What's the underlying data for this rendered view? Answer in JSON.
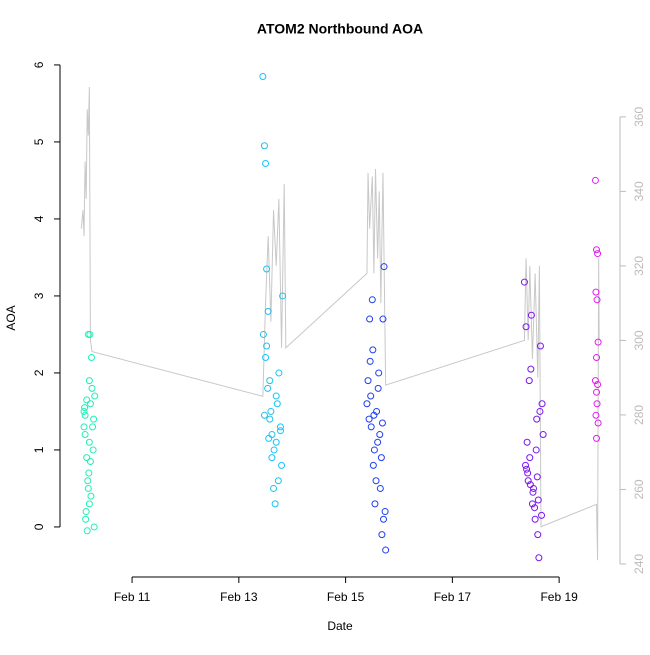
{
  "chart_data": {
    "type": "scatter",
    "title": "ATOM2 Northbound AOA",
    "x_label": "Date",
    "y_label": "AOA",
    "xlim": [
      9.65,
      20.14
    ],
    "xticks": [
      {
        "value": 11,
        "label": "Feb 11"
      },
      {
        "value": 13,
        "label": "Feb 13"
      },
      {
        "value": 15,
        "label": "Feb 15"
      },
      {
        "value": 17,
        "label": "Feb 17"
      },
      {
        "value": 19,
        "label": "Feb 19"
      }
    ],
    "ylim": [
      -0.65,
      6.09
    ],
    "yticks": [
      0,
      1,
      2,
      3,
      4,
      5,
      6
    ],
    "y2lim": [
      236.5,
      375.8
    ],
    "y2ticks": [
      240,
      260,
      280,
      300,
      320,
      340,
      360
    ],
    "series": [
      {
        "color": "#1ef0b4",
        "x": [
          10.1,
          10.12,
          10.15,
          10.18,
          10.2,
          10.22,
          10.25,
          10.28,
          10.1,
          10.13,
          10.16,
          10.19,
          10.21,
          10.24,
          10.27,
          10.3,
          10.11,
          10.14,
          10.17,
          10.2,
          10.23,
          10.26,
          10.29,
          10.12,
          10.18,
          10.22,
          10.15,
          10.2
        ],
        "values": [
          1.5,
          1.2,
          0.9,
          0.5,
          0.3,
          1.6,
          1.8,
          1.4,
          1.3,
          0.1,
          -0.05,
          0.7,
          2.5,
          2.2,
          1.0,
          1.7,
          1.55,
          0.2,
          0.6,
          1.1,
          0.4,
          1.3,
          0.0,
          1.45,
          2.5,
          0.85,
          1.65,
          1.9
        ]
      },
      {
        "color": "#19c3f5",
        "x": [
          13.45,
          13.48,
          13.5,
          13.52,
          13.55,
          13.58,
          13.6,
          13.62,
          13.65,
          13.68,
          13.7,
          13.72,
          13.75,
          13.78,
          13.8,
          13.82,
          13.46,
          13.5,
          13.54,
          13.58,
          13.62,
          13.66,
          13.7,
          13.74,
          13.78,
          13.48,
          13.52,
          13.56
        ],
        "values": [
          5.85,
          4.95,
          4.72,
          3.35,
          2.8,
          1.9,
          1.5,
          1.2,
          0.5,
          0.3,
          1.1,
          1.6,
          2.0,
          1.3,
          0.8,
          3.0,
          2.5,
          2.2,
          1.8,
          1.4,
          0.9,
          1.0,
          1.7,
          0.6,
          1.25,
          1.45,
          2.35,
          1.15
        ]
      },
      {
        "color": "#1f3ff2",
        "x": [
          15.4,
          15.42,
          15.45,
          15.48,
          15.5,
          15.52,
          15.55,
          15.58,
          15.6,
          15.62,
          15.65,
          15.68,
          15.7,
          15.72,
          15.75,
          15.44,
          15.47,
          15.51,
          15.54,
          15.57,
          15.61,
          15.64,
          15.67,
          15.71,
          15.74,
          15.46,
          15.53,
          15.69
        ],
        "values": [
          1.6,
          1.9,
          2.7,
          1.3,
          2.95,
          0.8,
          0.3,
          1.5,
          1.1,
          2.0,
          0.5,
          -0.1,
          2.7,
          3.38,
          -0.3,
          1.4,
          1.7,
          2.3,
          1.0,
          0.6,
          1.8,
          1.2,
          0.9,
          0.1,
          0.2,
          2.15,
          1.45,
          1.35
        ]
      },
      {
        "color": "#7a16f0",
        "x": [
          18.35,
          18.38,
          18.4,
          18.42,
          18.45,
          18.48,
          18.5,
          18.52,
          18.55,
          18.58,
          18.6,
          18.62,
          18.65,
          18.68,
          18.7,
          18.37,
          18.41,
          18.44,
          18.47,
          18.51,
          18.54,
          18.57,
          18.61,
          18.64,
          18.67,
          18.39,
          18.46,
          18.59
        ],
        "values": [
          3.18,
          2.6,
          1.1,
          0.6,
          0.9,
          2.75,
          0.3,
          0.5,
          0.1,
          1.4,
          -0.1,
          -0.4,
          2.35,
          1.6,
          1.2,
          0.8,
          0.7,
          1.9,
          2.05,
          0.45,
          0.25,
          1.0,
          0.35,
          1.5,
          0.15,
          0.75,
          0.55,
          0.65
        ]
      },
      {
        "color": "#e31ef0",
        "x": [
          19.68,
          19.7,
          19.72,
          19.69,
          19.71,
          19.73,
          19.7,
          19.68,
          19.72,
          19.7,
          19.71,
          19.69,
          19.73,
          19.7
        ],
        "values": [
          4.5,
          3.6,
          3.55,
          3.05,
          2.95,
          2.4,
          2.2,
          1.9,
          1.85,
          1.75,
          1.6,
          1.45,
          1.35,
          1.15
        ]
      },
      {
        "type": "line",
        "axis": "y2",
        "color": "#c8c8c8",
        "x": [
          10.05,
          10.08,
          10.1,
          10.12,
          10.14,
          10.16,
          10.18,
          10.2,
          10.22,
          10.25,
          13.45,
          13.5,
          13.55,
          13.6,
          13.65,
          13.7,
          13.75,
          13.8,
          13.85,
          13.88,
          15.4,
          15.42,
          15.45,
          15.5,
          15.53,
          15.56,
          15.6,
          15.63,
          15.66,
          15.7,
          15.75,
          18.35,
          18.38,
          18.42,
          18.45,
          18.5,
          18.55,
          18.6,
          18.63,
          18.66,
          19.7,
          19.72,
          19.74,
          19.75
        ],
        "values": [
          330,
          335,
          328,
          348,
          338,
          362,
          355,
          368,
          300,
          297,
          285,
          310,
          328,
          305,
          335,
          320,
          338,
          298,
          342,
          298,
          318,
          345,
          330,
          344,
          318,
          346,
          322,
          340,
          310,
          345,
          288,
          300,
          322,
          300,
          320,
          295,
          318,
          290,
          320,
          250,
          256,
          241,
          322,
          300
        ]
      }
    ]
  }
}
